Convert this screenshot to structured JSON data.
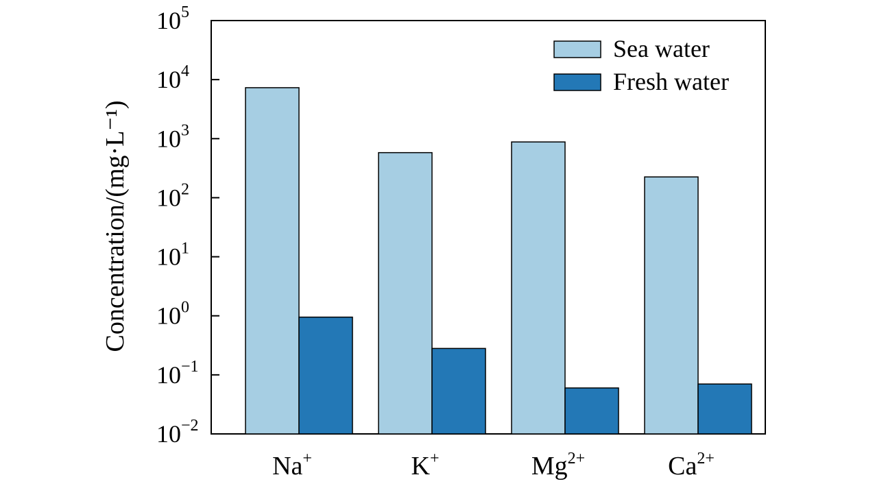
{
  "chart_data": {
    "type": "bar",
    "yscale": "log",
    "ylim": [
      0.01,
      100000
    ],
    "ylabel": "Concentration/(mg·L⁻¹)",
    "xlabel": "",
    "yticks": [
      {
        "value": 100000,
        "base": "10",
        "exp": "5"
      },
      {
        "value": 10000,
        "base": "10",
        "exp": "4"
      },
      {
        "value": 1000,
        "base": "10",
        "exp": "3"
      },
      {
        "value": 100,
        "base": "10",
        "exp": "2"
      },
      {
        "value": 10,
        "base": "10",
        "exp": "1"
      },
      {
        "value": 1,
        "base": "10",
        "exp": "0"
      },
      {
        "value": 0.1,
        "base": "10",
        "exp": "−1"
      },
      {
        "value": 0.01,
        "base": "10",
        "exp": "−2"
      }
    ],
    "categories": [
      {
        "base": "Na",
        "sup": "+"
      },
      {
        "base": "K",
        "sup": "+"
      },
      {
        "base": "Mg",
        "sup": "2+"
      },
      {
        "base": "Ca",
        "sup": "2+"
      }
    ],
    "series": [
      {
        "name": "Sea water",
        "color": "#a6cee3",
        "values": [
          7300,
          580,
          880,
          225
        ]
      },
      {
        "name": "Fresh water",
        "color": "#2378b6",
        "values": [
          0.95,
          0.28,
          0.06,
          0.07
        ]
      }
    ],
    "legend_position": "top-right",
    "grid": false
  }
}
